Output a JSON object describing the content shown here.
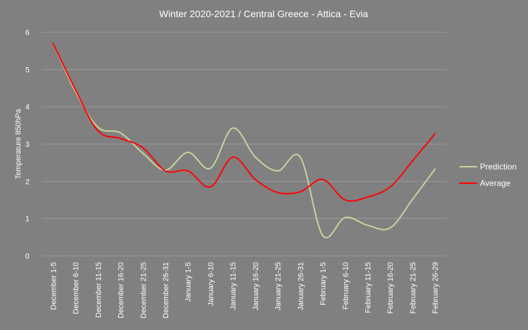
{
  "chart_data": {
    "type": "line",
    "title": "Winter 2020-2021 / Central Greece - Attica - Evia",
    "xlabel": "",
    "ylabel": "Temperature  850hPa",
    "ylim": [
      0,
      6
    ],
    "yticks": [
      0,
      1,
      2,
      3,
      4,
      5,
      6
    ],
    "grid": true,
    "legend_position": "right",
    "categories": [
      "December 1-5",
      "December 6-10",
      "December 11-15",
      "December 16-20",
      "December 21-25",
      "December 26-31",
      "January 1-5",
      "January 6-10",
      "January 11-15",
      "January 16-20",
      "January 21-25",
      "January 26-31",
      "February 1-5",
      "February 6-10",
      "February 11-15",
      "February 16-20",
      "February 21-25",
      "February 26-29"
    ],
    "series": [
      {
        "name": "Prediction",
        "color": "#c4d79b",
        "values": [
          5.7,
          4.4,
          3.45,
          3.3,
          2.75,
          2.3,
          2.78,
          2.35,
          3.43,
          2.65,
          2.28,
          2.65,
          0.55,
          1.03,
          0.82,
          0.75,
          1.52,
          2.33
        ]
      },
      {
        "name": "Average",
        "color": "#ff0000",
        "values": [
          5.7,
          4.45,
          3.35,
          3.15,
          2.9,
          2.28,
          2.28,
          1.85,
          2.65,
          2.05,
          1.7,
          1.72,
          2.05,
          1.5,
          1.58,
          1.85,
          2.55,
          3.28
        ]
      }
    ]
  }
}
